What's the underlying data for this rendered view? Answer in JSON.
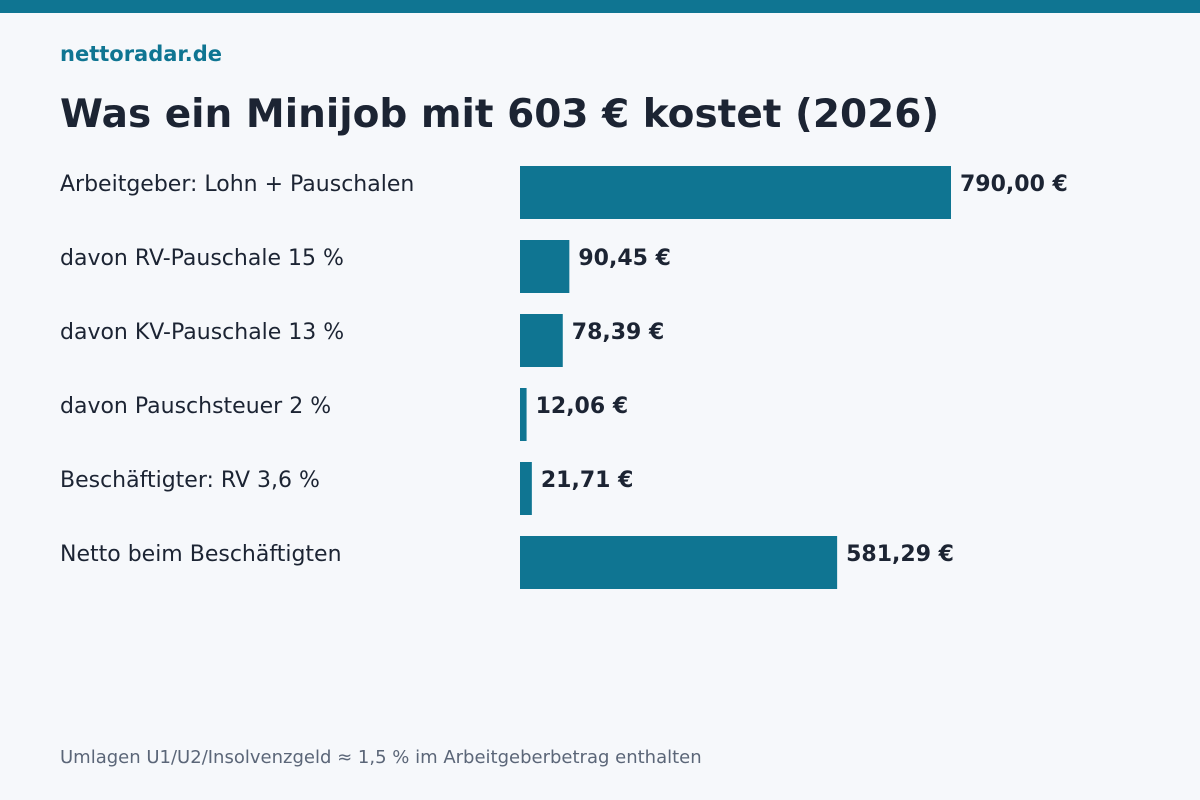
{
  "brand": "nettoradar.de",
  "title": "Was ein Minijob mit 603 € kostet (2026)",
  "footnote": "Umlagen U1/U2/Insolvenzgeld ≈ 1,5 % im Arbeitgeberbetrag enthalten",
  "colors": {
    "accent": "#0f7592",
    "text": "#1c2433",
    "muted": "#5b6678",
    "background": "#f6f8fb"
  },
  "chart_data": {
    "type": "bar",
    "orientation": "horizontal",
    "title": "Was ein Minijob mit 603 € kostet (2026)",
    "xlabel": "",
    "ylabel": "",
    "grid": false,
    "xlim": [
      0,
      790
    ],
    "categories": [
      "Arbeitgeber: Lohn + Pauschalen",
      "davon RV-Pauschale 15 %",
      "davon KV-Pauschale 13 %",
      "davon Pauschsteuer 2 %",
      "Beschäftigter: RV 3,6 %",
      "Netto beim Beschäftigten"
    ],
    "values": [
      790.0,
      90.45,
      78.39,
      12.06,
      21.71,
      581.29
    ],
    "value_labels": [
      "790,00 €",
      "90,45 €",
      "78,39 €",
      "12,06 €",
      "21,71 €",
      "581,29 €"
    ]
  }
}
